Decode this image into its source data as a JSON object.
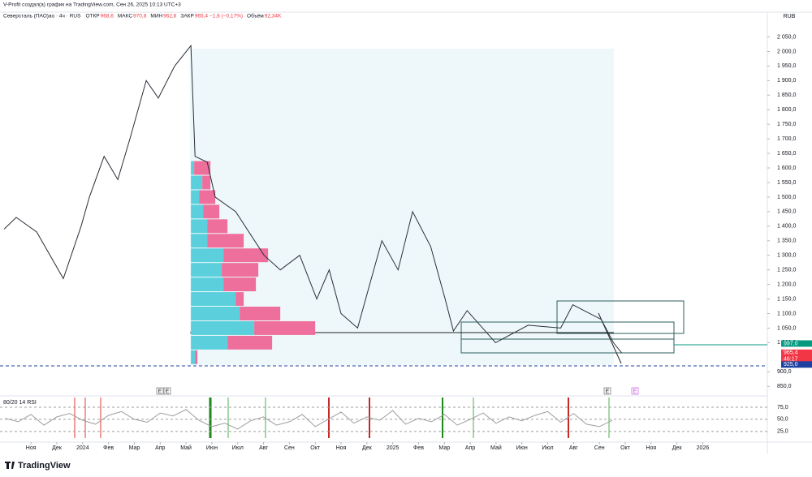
{
  "header": {
    "caption": "V-Profit создал(а) график на TradingView.com, Сен 26, 2025 10:13 UTC+3",
    "symbol": "Северсталь (ПАО)ао · 4ч · RUS",
    "ohlc": [
      {
        "label": "ОТКР",
        "value": "968,6"
      },
      {
        "label": "МАКС",
        "value": "970,8"
      },
      {
        "label": "МИН",
        "value": "962,6"
      },
      {
        "label": "ЗАКР",
        "value": "965,4 −1,6 (−0,17%)"
      },
      {
        "label": "Объём",
        "value": "92,34K"
      }
    ]
  },
  "logo": "TradingView",
  "events": [
    "E",
    "E",
    "E",
    "E"
  ],
  "chart_data": [
    {
      "type": "line",
      "unit": "RUB",
      "color": "#2a2e39",
      "x": [
        -1.04,
        -0.57,
        0.22,
        1.25,
        1.94,
        2.26,
        2.83,
        3.36,
        3.83,
        4.46,
        4.93,
        5.56,
        6.19,
        6.35,
        6.82,
        7.13,
        7.92,
        9.02,
        9.65,
        10.4,
        11.06,
        11.54,
        12.0,
        12.64,
        13.11,
        13.58,
        14.21,
        14.77,
        15.47,
        16.03,
        16.35,
        16.88,
        17.98,
        19.24,
        20.5,
        20.97,
        22.07,
        22.54,
        22.86
      ],
      "values": [
        1390,
        1430,
        1380,
        1220,
        1400,
        1500,
        1640,
        1560,
        1700,
        1900,
        1840,
        1950,
        2020,
        1640,
        1620,
        1500,
        1450,
        1300,
        1250,
        1300,
        1150,
        1250,
        1100,
        1050,
        1200,
        1350,
        1250,
        1450,
        1330,
        1150,
        1040,
        1110,
        1000,
        1060,
        1050,
        1130,
        1080,
        1000,
        965.4
      ],
      "xlim": [
        -1.2,
        28.5
      ],
      "xticks": [
        {
          "value": 0,
          "label": "Ноя"
        },
        {
          "value": 1,
          "label": "Дек"
        },
        {
          "value": 2,
          "label": "2024"
        },
        {
          "value": 3,
          "label": "Фев"
        },
        {
          "value": 4,
          "label": "Мар"
        },
        {
          "value": 5,
          "label": "Апр"
        },
        {
          "value": 6,
          "label": "Май"
        },
        {
          "value": 7,
          "label": "Июн"
        },
        {
          "value": 8,
          "label": "Июл"
        },
        {
          "value": 9,
          "label": "Авг"
        },
        {
          "value": 10,
          "label": "Сен"
        },
        {
          "value": 11,
          "label": "Окт"
        },
        {
          "value": 12,
          "label": "Ноя"
        },
        {
          "value": 13,
          "label": "Дек"
        },
        {
          "value": 14,
          "label": "2025"
        },
        {
          "value": 15,
          "label": "Фев"
        },
        {
          "value": 16,
          "label": "Мар"
        },
        {
          "value": 17,
          "label": "Апр"
        },
        {
          "value": 18,
          "label": "Май"
        },
        {
          "value": 19,
          "label": "Июн"
        },
        {
          "value": 20,
          "label": "Июл"
        },
        {
          "value": 21,
          "label": "Авг"
        },
        {
          "value": 22,
          "label": "Сен"
        },
        {
          "value": 23,
          "label": "Окт"
        },
        {
          "value": 24,
          "label": "Ноя"
        },
        {
          "value": 25,
          "label": "Дек"
        },
        {
          "value": 26,
          "label": "2026"
        }
      ],
      "ylim": [
        820,
        2135
      ],
      "yticks": [
        {
          "value": 850,
          "label": "850,0"
        },
        {
          "value": 900,
          "label": "900,0"
        },
        {
          "value": 1000,
          "label": "1 000,0"
        },
        {
          "value": 1050,
          "label": "1 050,0"
        },
        {
          "value": 1100,
          "label": "1 100,0"
        },
        {
          "value": 1150,
          "label": "1 150,0"
        },
        {
          "value": 1200,
          "label": "1 200,0"
        },
        {
          "value": 1250,
          "label": "1 250,0"
        },
        {
          "value": 1300,
          "label": "1 300,0"
        },
        {
          "value": 1350,
          "label": "1 350,0"
        },
        {
          "value": 1400,
          "label": "1 400,0"
        },
        {
          "value": 1450,
          "label": "1 450,0"
        },
        {
          "value": 1500,
          "label": "1 500,0"
        },
        {
          "value": 1550,
          "label": "1 550,0"
        },
        {
          "value": 1600,
          "label": "1 600,0"
        },
        {
          "value": 1650,
          "label": "1 650,0"
        },
        {
          "value": 1700,
          "label": "1 700,0"
        },
        {
          "value": 1750,
          "label": "1 750,0"
        },
        {
          "value": 1800,
          "label": "1 800,0"
        },
        {
          "value": 1850,
          "label": "1 850,0"
        },
        {
          "value": 1900,
          "label": "1 900,0"
        },
        {
          "value": 1950,
          "label": "1 950,0"
        },
        {
          "value": 2000,
          "label": "2 000,0"
        },
        {
          "value": 2050,
          "label": "2 050,0"
        }
      ],
      "grid": false,
      "price_labels": [
        {
          "value": 997,
          "label": "997,0",
          "color": "#089981"
        },
        {
          "value": 965.4,
          "label": "965,4",
          "sub": "46:17",
          "color": "#f23645"
        },
        {
          "value": 925,
          "label": "925,0",
          "color": "#1e3fa0"
        }
      ],
      "volume_profile": {
        "up_color": "#5bd0dc",
        "down_color": "#ee6f9b",
        "levels": [
          1600,
          1550,
          1500,
          1450,
          1400,
          1350,
          1300,
          1250,
          1200,
          1150,
          1100,
          1050,
          1000,
          950
        ],
        "up": [
          4,
          14,
          10,
          15,
          20,
          20,
          40,
          38,
          40,
          55,
          60,
          78,
          45,
          5
        ],
        "down": [
          20,
          10,
          20,
          20,
          25,
          45,
          55,
          45,
          40,
          10,
          50,
          75,
          55,
          3
        ]
      }
    },
    {
      "type": "line",
      "title": "80/20 14 RSI",
      "color": "#9e9e9e",
      "x": [
        -1,
        -0.5,
        0,
        0.5,
        1,
        1.5,
        2,
        2.5,
        3,
        3.5,
        4,
        4.5,
        5,
        5.5,
        6,
        6.5,
        7,
        7.5,
        8,
        8.5,
        9,
        9.5,
        10,
        10.5,
        11,
        11.5,
        12,
        12.5,
        13,
        13.5,
        14,
        14.5,
        15,
        15.5,
        16,
        16.5,
        17,
        17.5,
        18,
        18.5,
        19,
        19.5,
        20,
        20.5,
        21,
        21.5,
        22,
        22.5
      ],
      "values": [
        52,
        45,
        60,
        38,
        55,
        62,
        48,
        40,
        58,
        66,
        50,
        44,
        63,
        57,
        70,
        48,
        35,
        42,
        30,
        47,
        55,
        38,
        45,
        60,
        35,
        50,
        65,
        42,
        55,
        48,
        68,
        40,
        52,
        45,
        60,
        38,
        50,
        63,
        42,
        55,
        47,
        58,
        66,
        44,
        62,
        40,
        35,
        48
      ],
      "ylim": [
        3,
        95
      ],
      "yticks": [
        {
          "value": 25,
          "label": "25,0"
        },
        {
          "value": 50,
          "label": "50,0"
        },
        {
          "value": 75,
          "label": "75,0"
        }
      ]
    }
  ]
}
